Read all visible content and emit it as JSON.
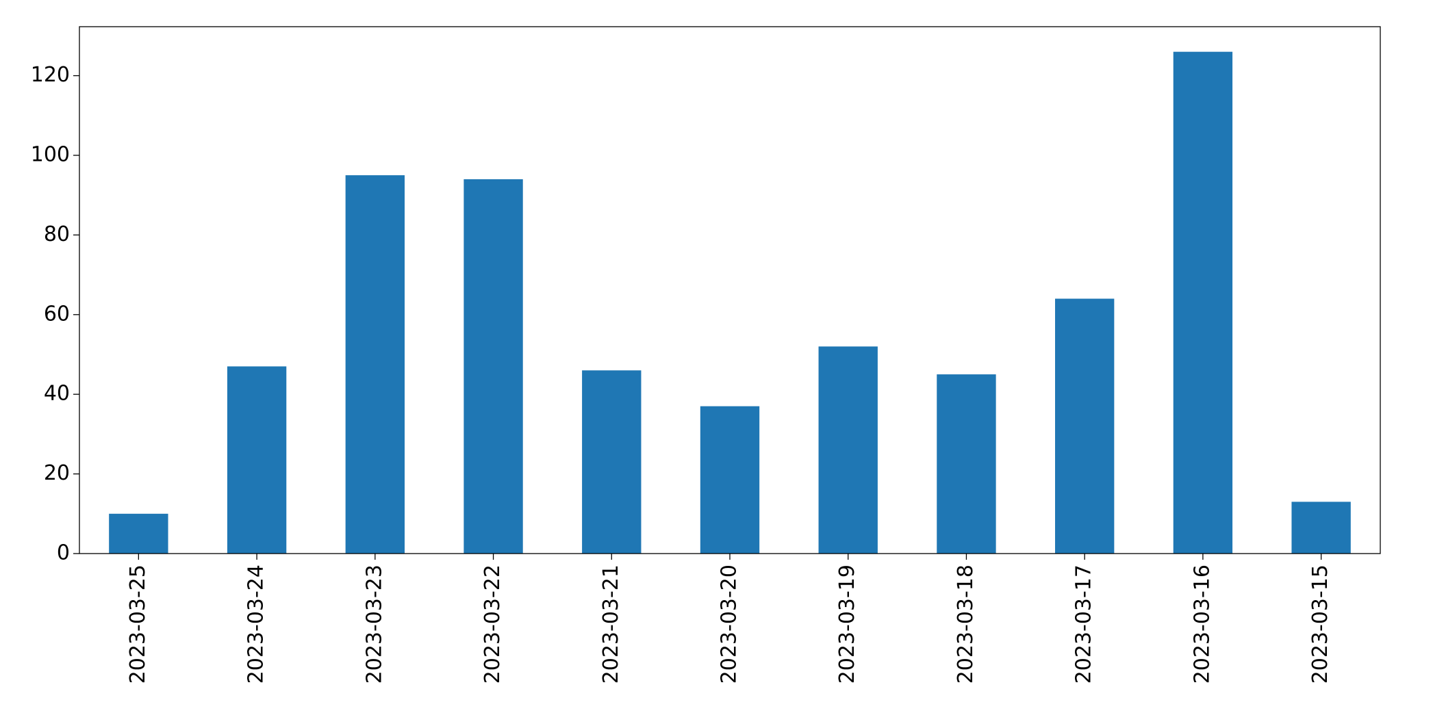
{
  "chart_data": {
    "type": "bar",
    "categories": [
      "2023-03-25",
      "2023-03-24",
      "2023-03-23",
      "2023-03-22",
      "2023-03-21",
      "2023-03-20",
      "2023-03-19",
      "2023-03-18",
      "2023-03-17",
      "2023-03-16",
      "2023-03-15"
    ],
    "values": [
      10,
      47,
      95,
      94,
      46,
      37,
      52,
      45,
      64,
      126,
      13
    ],
    "color": "#1f77b4",
    "ylim": [
      0,
      132.3
    ],
    "yticks": [
      0,
      20,
      40,
      60,
      80,
      100,
      120
    ],
    "grid": false
  }
}
